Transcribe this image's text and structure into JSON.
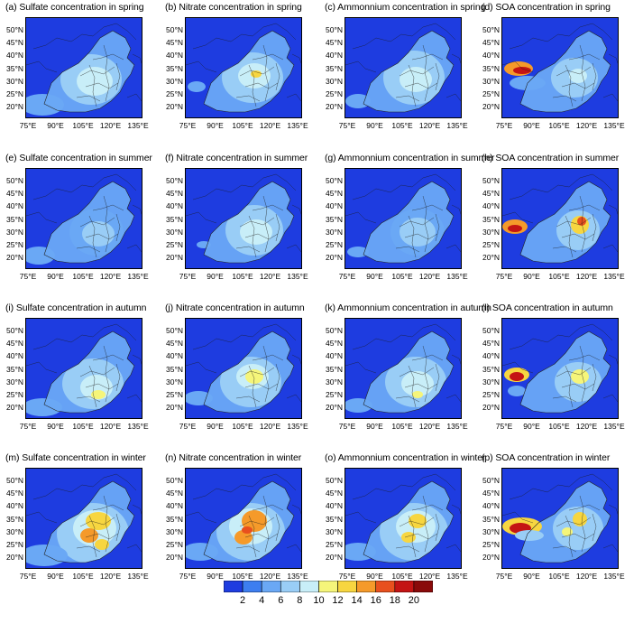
{
  "panels": [
    {
      "label": "(a) Sulfate concentration in spring",
      "species": "sulfate",
      "season": "spring"
    },
    {
      "label": "(b) Nitrate concentration in spring",
      "species": "nitrate",
      "season": "spring"
    },
    {
      "label": "(c) Ammonnium concentration in spring",
      "species": "ammonium",
      "season": "spring"
    },
    {
      "label": "(d) SOA concentration in spring",
      "species": "soa",
      "season": "spring"
    },
    {
      "label": "(e) Sulfate concentration in summer",
      "species": "sulfate",
      "season": "summer"
    },
    {
      "label": "(f) Nitrate concentration in summer",
      "species": "nitrate",
      "season": "summer"
    },
    {
      "label": "(g) Ammonnium concentration in summer",
      "species": "ammonium",
      "season": "summer"
    },
    {
      "label": "(h) SOA concentration in summer",
      "species": "soa",
      "season": "summer"
    },
    {
      "label": "(i) Sulfate concentration in autumn",
      "species": "sulfate",
      "season": "autumn"
    },
    {
      "label": "(j) Nitrate concentration in autumn",
      "species": "nitrate",
      "season": "autumn"
    },
    {
      "label": "(k) Ammonnium concentration in autumn",
      "species": "ammonium",
      "season": "autumn"
    },
    {
      "label": "(l) SOA concentration in autumn",
      "species": "soa",
      "season": "autumn"
    },
    {
      "label": "(m) Sulfate concentration in winter",
      "species": "sulfate",
      "season": "winter"
    },
    {
      "label": "(n) Nitrate concentration in winter",
      "species": "nitrate",
      "season": "winter"
    },
    {
      "label": "(o) Ammonnium concentration in winter",
      "species": "ammonium",
      "season": "winter"
    },
    {
      "label": "(p) SOA concentration in winter",
      "species": "soa",
      "season": "winter"
    }
  ],
  "lat_labels": [
    "50°N",
    "45°N",
    "40°N",
    "35°N",
    "30°N",
    "25°N",
    "20°N"
  ],
  "lon_labels": [
    "75°E",
    "90°E",
    "105°E",
    "120°E",
    "135°E"
  ],
  "colorbar": {
    "labels": [
      "2",
      "4",
      "6",
      "8",
      "10",
      "12",
      "14",
      "16",
      "18",
      "20"
    ],
    "colors": [
      "#1e3ce0",
      "#3d7ef0",
      "#6aa8f5",
      "#99cdf6",
      "#c8eef8",
      "#f5f57a",
      "#f7d640",
      "#f59a2a",
      "#e8501e",
      "#c41414",
      "#8a0a0a"
    ]
  }
}
